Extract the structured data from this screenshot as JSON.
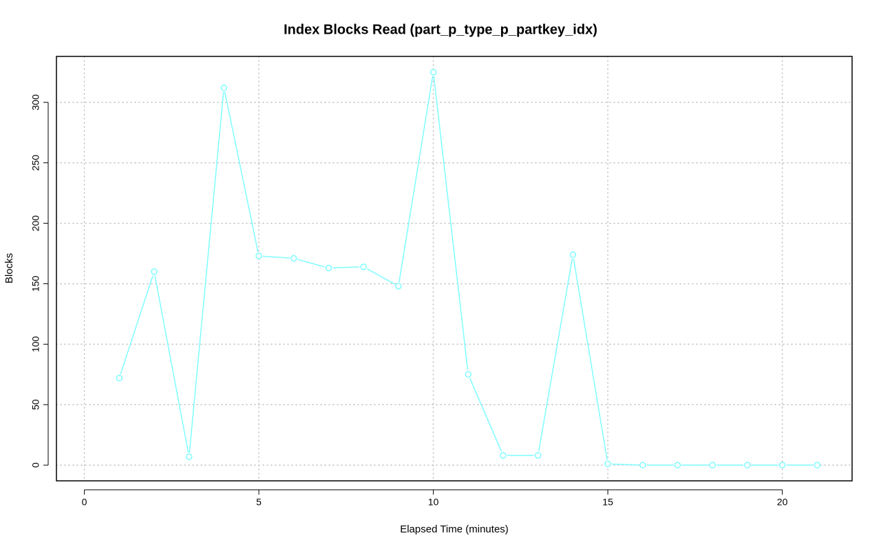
{
  "chart_data": {
    "type": "line",
    "title": "Index Blocks Read (part_p_type_p_partkey_idx)",
    "xlabel": "Elapsed Time (minutes)",
    "ylabel": "Blocks",
    "x_ticks": [
      0,
      5,
      10,
      15,
      20
    ],
    "y_ticks": [
      0,
      50,
      100,
      150,
      200,
      250,
      300
    ],
    "xlim": [
      -0.8,
      22.0
    ],
    "ylim": [
      -13,
      338
    ],
    "grid": true,
    "legend": "none",
    "series": [
      {
        "color": "#7ffdff",
        "points": [
          {
            "x": 1,
            "y": 72
          },
          {
            "x": 2,
            "y": 160
          },
          {
            "x": 3,
            "y": 7
          },
          {
            "x": 4,
            "y": 312
          },
          {
            "x": 5,
            "y": 173
          },
          {
            "x": 6,
            "y": 171
          },
          {
            "x": 7,
            "y": 163
          },
          {
            "x": 8,
            "y": 164
          },
          {
            "x": 9,
            "y": 148
          },
          {
            "x": 10,
            "y": 325
          },
          {
            "x": 11,
            "y": 75
          },
          {
            "x": 12,
            "y": 8
          },
          {
            "x": 13,
            "y": 8
          },
          {
            "x": 14,
            "y": 174
          },
          {
            "x": 15,
            "y": 1
          },
          {
            "x": 16,
            "y": 0
          },
          {
            "x": 17,
            "y": 0
          },
          {
            "x": 18,
            "y": 0
          },
          {
            "x": 19,
            "y": 0
          },
          {
            "x": 20,
            "y": 0
          },
          {
            "x": 21,
            "y": 0
          }
        ]
      }
    ]
  }
}
